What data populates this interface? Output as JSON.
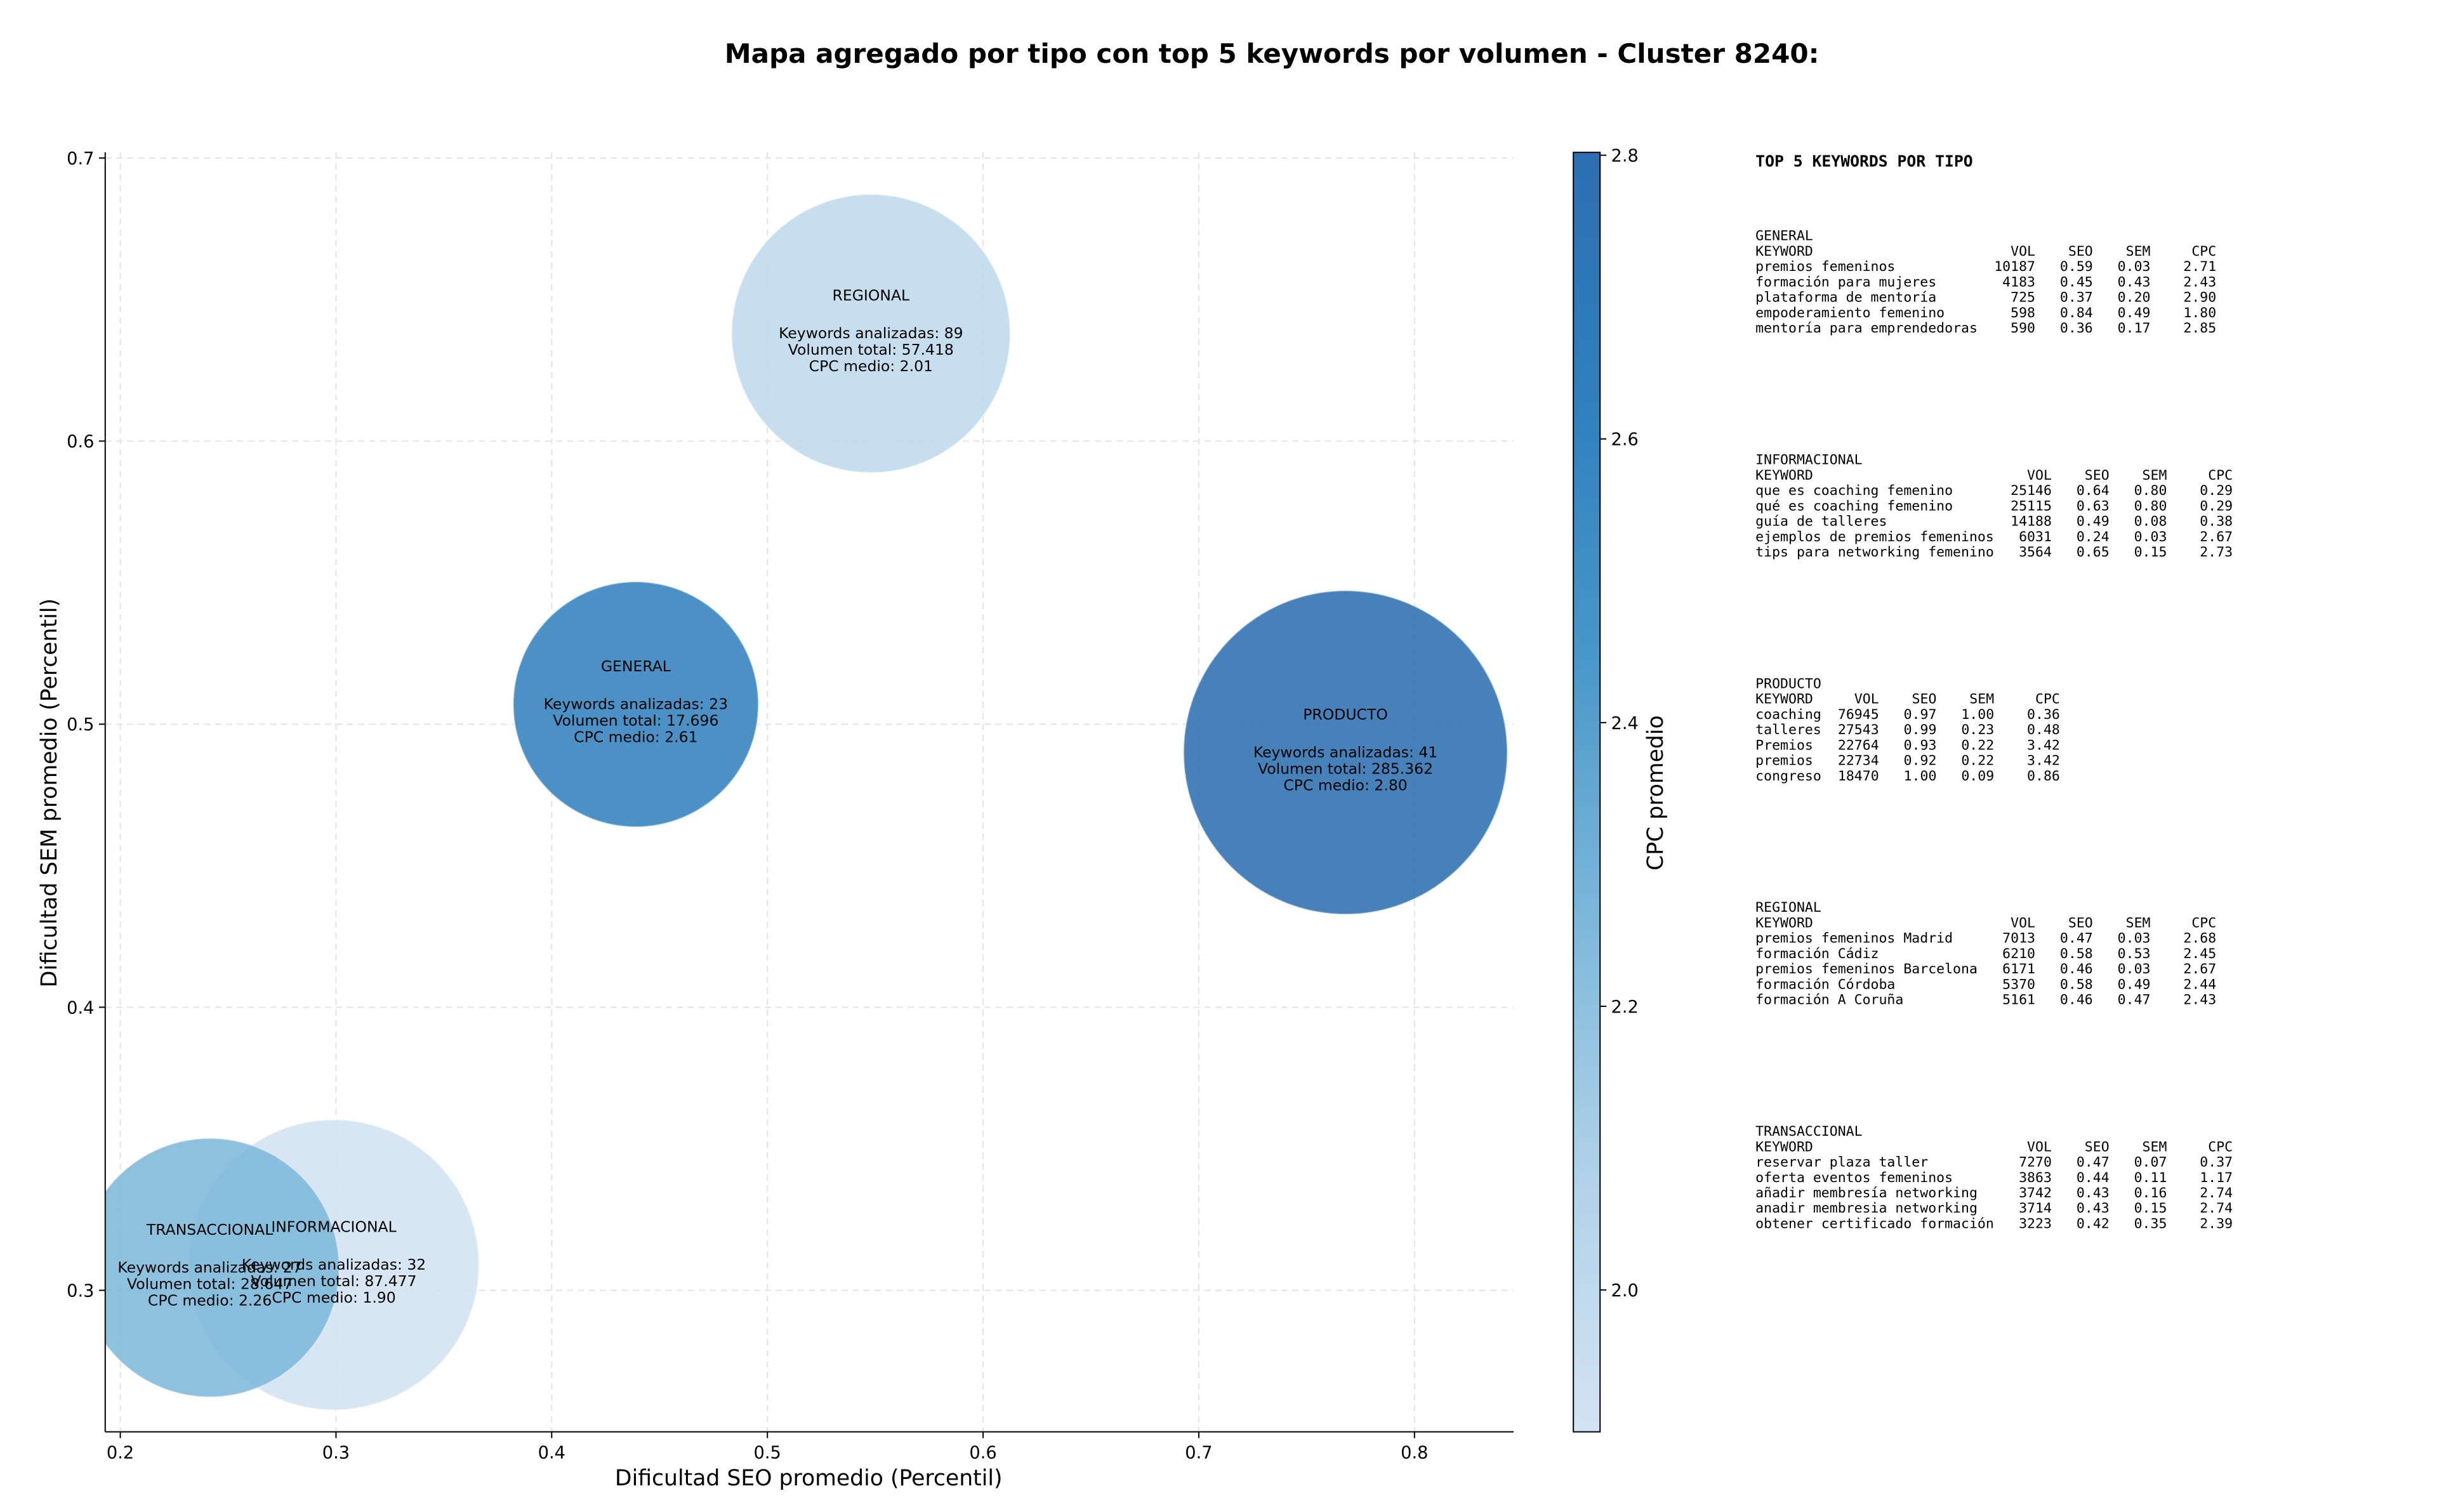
{
  "chart_data": {
    "type": "bubble",
    "title": "Mapa agregado por tipo con top 5 keywords por volumen - Cluster 8240:",
    "x_label": "Dificultad SEO promedio (Percentil)",
    "y_label": "Dificultad SEM promedio (Percentil)",
    "colorbar_label": "CPC promedio",
    "xlim": [
      0.193,
      0.846
    ],
    "ylim": [
      0.25,
      0.702
    ],
    "xticks": [
      0.2,
      0.3,
      0.4,
      0.5,
      0.6,
      0.7,
      0.8
    ],
    "yticks": [
      0.3,
      0.4,
      0.5,
      0.6,
      0.7
    ],
    "clim": [
      1.9,
      2.802
    ],
    "cticks": [
      {
        "value": 2.0,
        "label": "2.0"
      },
      2.2,
      2.4,
      2.6,
      2.8
    ],
    "colormap": [
      "#d3e3f3",
      "#b0d2e8",
      "#7db8da",
      "#4a98c9",
      "#3080bd",
      "#2d6fb1"
    ],
    "grid": true,
    "points": [
      {
        "name": "GENERAL",
        "x": 0.439,
        "y": 0.507,
        "size": 17696,
        "color_value": 2.61,
        "keywords_label": "Keywords analizadas: 23",
        "size_label": "Volumen total: 17.696",
        "color_label": "CPC medio: 2.61"
      },
      {
        "name": "INFORMACIONAL",
        "x": 0.299,
        "y": 0.309,
        "size": 87477,
        "color_value": 1.9,
        "keywords_label": "Keywords analizadas: 32",
        "size_label": "Volumen total: 87.477",
        "color_label": "CPC medio: 1.90"
      },
      {
        "name": "PRODUCTO",
        "x": 0.768,
        "y": 0.49,
        "size": 285362,
        "color_value": 2.8,
        "keywords_label": "Keywords analizadas: 41",
        "size_label": "Volumen total: 285.362",
        "color_label": "CPC medio: 2.80"
      },
      {
        "name": "REGIONAL",
        "x": 0.548,
        "y": 0.638,
        "size": 57418,
        "color_value": 2.01,
        "keywords_label": "Keywords analizadas: 89",
        "size_label": "Volumen total: 57.418",
        "color_label": "CPC medio: 2.01"
      },
      {
        "name": "TRANSACCIONAL",
        "x": 0.2415,
        "y": 0.308,
        "size": 28647,
        "color_value": 2.26,
        "keywords_label": "Keywords analizadas: 27",
        "size_label": "Volumen total: 28.647",
        "color_label": "CPC medio: 2.26"
      }
    ]
  },
  "side_panel": {
    "title": "TOP 5 KEYWORDS POR TIPO",
    "columns": [
      "KEYWORD",
      "VOL",
      "SEO",
      "SEM",
      "CPC"
    ],
    "sections": [
      {
        "name": "GENERAL",
        "rows": [
          [
            "premios femeninos",
            "10187",
            "0.59",
            "0.03",
            "2.71"
          ],
          [
            "formación para mujeres",
            "4183",
            "0.45",
            "0.43",
            "2.43"
          ],
          [
            "plataforma de mentoría",
            "725",
            "0.37",
            "0.20",
            "2.90"
          ],
          [
            "empoderamiento femenino",
            "598",
            "0.84",
            "0.49",
            "1.80"
          ],
          [
            "mentoría para emprendedoras",
            "590",
            "0.36",
            "0.17",
            "2.85"
          ]
        ]
      },
      {
        "name": "INFORMACIONAL",
        "rows": [
          [
            "que es coaching femenino",
            "25146",
            "0.64",
            "0.80",
            "0.29"
          ],
          [
            "qué es coaching femenino",
            "25115",
            "0.63",
            "0.80",
            "0.29"
          ],
          [
            "guía de talleres",
            "14188",
            "0.49",
            "0.08",
            "0.38"
          ],
          [
            "ejemplos de premios femeninos",
            "6031",
            "0.24",
            "0.03",
            "2.67"
          ],
          [
            "tips para networking femenino",
            "3564",
            "0.65",
            "0.15",
            "2.73"
          ]
        ]
      },
      {
        "name": "PRODUCTO",
        "rows": [
          [
            "coaching",
            "76945",
            "0.97",
            "1.00",
            "0.36"
          ],
          [
            "talleres",
            "27543",
            "0.99",
            "0.23",
            "0.48"
          ],
          [
            "Premios",
            "22764",
            "0.93",
            "0.22",
            "3.42"
          ],
          [
            "premios",
            "22734",
            "0.92",
            "0.22",
            "3.42"
          ],
          [
            "congreso",
            "18470",
            "1.00",
            "0.09",
            "0.86"
          ]
        ]
      },
      {
        "name": "REGIONAL",
        "rows": [
          [
            "premios femeninos Madrid",
            "7013",
            "0.47",
            "0.03",
            "2.68"
          ],
          [
            "formación Cádiz",
            "6210",
            "0.58",
            "0.53",
            "2.45"
          ],
          [
            "premios femeninos Barcelona",
            "6171",
            "0.46",
            "0.03",
            "2.67"
          ],
          [
            "formación Córdoba",
            "5370",
            "0.58",
            "0.49",
            "2.44"
          ],
          [
            "formación A Coruña",
            "5161",
            "0.46",
            "0.47",
            "2.43"
          ]
        ]
      },
      {
        "name": "TRANSACCIONAL",
        "rows": [
          [
            "reservar plaza taller",
            "7270",
            "0.47",
            "0.07",
            "0.37"
          ],
          [
            "oferta eventos femeninos",
            "3863",
            "0.44",
            "0.11",
            "1.17"
          ],
          [
            "añadir membresía networking",
            "3742",
            "0.43",
            "0.16",
            "2.74"
          ],
          [
            "anadir membresia networking",
            "3714",
            "0.43",
            "0.15",
            "2.74"
          ],
          [
            "obtener certificado formación",
            "3223",
            "0.42",
            "0.35",
            "2.39"
          ]
        ]
      }
    ]
  }
}
